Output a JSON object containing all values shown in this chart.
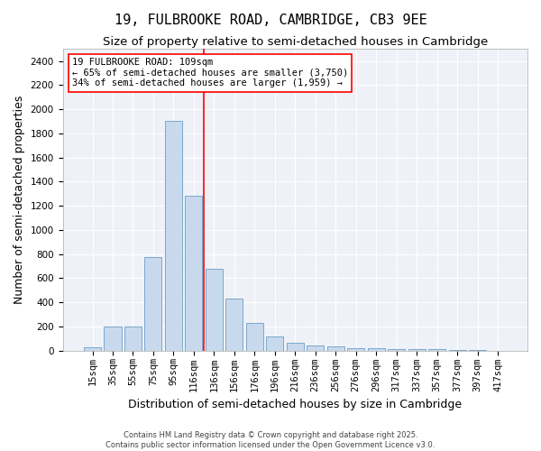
{
  "title": "19, FULBROOKE ROAD, CAMBRIDGE, CB3 9EE",
  "subtitle": "Size of property relative to semi-detached houses in Cambridge",
  "xlabel": "Distribution of semi-detached houses by size in Cambridge",
  "ylabel": "Number of semi-detached properties",
  "footer_line1": "Contains HM Land Registry data © Crown copyright and database right 2025.",
  "footer_line2": "Contains public sector information licensed under the Open Government Licence v3.0.",
  "categories": [
    "15sqm",
    "35sqm",
    "55sqm",
    "75sqm",
    "95sqm",
    "116sqm",
    "136sqm",
    "156sqm",
    "176sqm",
    "196sqm",
    "216sqm",
    "236sqm",
    "256sqm",
    "276sqm",
    "296sqm",
    "317sqm",
    "337sqm",
    "357sqm",
    "377sqm",
    "397sqm",
    "417sqm"
  ],
  "values": [
    25,
    200,
    200,
    775,
    1900,
    1280,
    680,
    430,
    230,
    115,
    65,
    45,
    35,
    22,
    22,
    15,
    15,
    10,
    5,
    2,
    0
  ],
  "bar_color": "#c9d9ed",
  "bar_edge_color": "#7aa8cc",
  "vline_position": 5.5,
  "vline_color": "red",
  "annotation_title": "19 FULBROOKE ROAD: 109sqm",
  "annotation_line1": "← 65% of semi-detached houses are smaller (3,750)",
  "annotation_line2": "34% of semi-detached houses are larger (1,959) →",
  "annotation_box_color": "white",
  "annotation_box_edge_color": "red",
  "ylim": [
    0,
    2500
  ],
  "yticks": [
    0,
    200,
    400,
    600,
    800,
    1000,
    1200,
    1400,
    1600,
    1800,
    2000,
    2200,
    2400
  ],
  "background_color": "#eef2f8",
  "grid_color": "white",
  "fig_bg_color": "#ffffff",
  "title_fontsize": 11,
  "subtitle_fontsize": 9.5,
  "axis_label_fontsize": 9,
  "tick_fontsize": 7.5,
  "annotation_fontsize": 7.5,
  "footer_fontsize": 6
}
